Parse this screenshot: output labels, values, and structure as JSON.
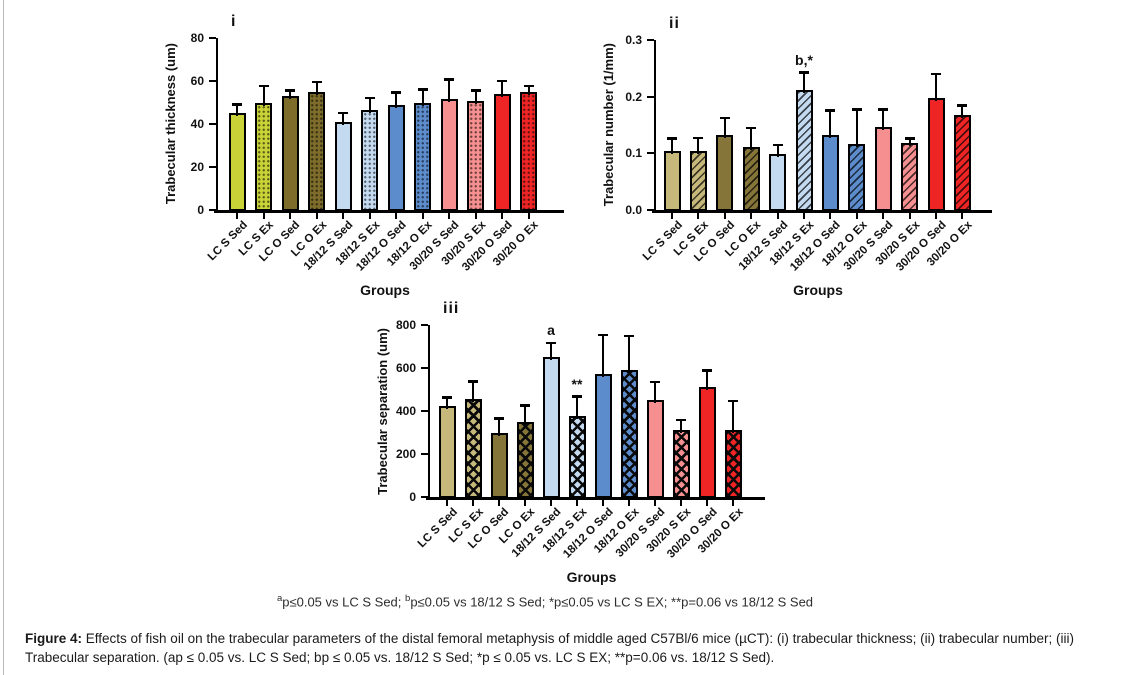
{
  "footnote": {
    "sup_a": "a",
    "seg1": "p≤0.05 vs LC  S Sed; ",
    "sup_b": "b",
    "seg2": "p≤0.05 vs 18/12 S Sed; *p≤0.05 vs LC S EX; **p=0.06 vs 18/12 S Sed"
  },
  "caption": {
    "label": "Figure 4:",
    "text": " Effects of fish oil on the trabecular parameters of the distal femoral metaphysis of middle aged C57Bl/6 mice (µCT): (i) trabecular thickness; (ii) trabecular number; (iii) Trabecular separation. (ap ≤ 0.05 vs. LC S Sed; bp ≤ 0.05 vs. 18/12 S Sed; *p ≤ 0.05 vs. LC S EX; **p=0.06 vs. 18/12 S Sed)."
  },
  "chart_data": [
    {
      "type": "bar",
      "index_label": "i",
      "ylabel": "Trabecular thickness (um)",
      "xlabel": "Groups",
      "ylim": [
        0,
        80
      ],
      "ytick_values": [
        0,
        20,
        40,
        60,
        80
      ],
      "ytick_labels": [
        "0",
        "20",
        "40",
        "60",
        "80"
      ],
      "grid": false,
      "legend": "none",
      "categories": [
        "LC S Sed",
        "LC S Ex",
        "LC O Sed",
        "LC O Ex",
        "18/12 S Sed",
        "18/12 S Ex",
        "18/12 O Sed",
        "18/12 O Ex",
        "30/20 S Sed",
        "30/20 S Ex",
        "30/20 O Sed",
        "30/20 O Ex"
      ],
      "values": [
        45,
        50,
        53,
        55,
        41,
        46.5,
        49,
        50,
        51.5,
        50.5,
        54,
        55
      ],
      "errors": [
        4,
        7.5,
        2.5,
        4.5,
        4,
        5.5,
        5.5,
        6,
        9,
        5,
        6,
        2.5
      ],
      "annotations": [
        "",
        "",
        "",
        "",
        "",
        "",
        "",
        "",
        "",
        "",
        "",
        ""
      ],
      "colors": [
        "#c9d337",
        "#c9d337",
        "#7d6c2a",
        "#7d6c2a",
        "#c3daf0",
        "#c3daf0",
        "#5d8ccd",
        "#5d8ccd",
        "#f69090",
        "#f69090",
        "#ee2425",
        "#ee2425"
      ],
      "patterns": [
        "solid",
        "dots",
        "solid",
        "dots",
        "solid",
        "dots",
        "solid",
        "dots",
        "solid",
        "dots",
        "solid",
        "dots"
      ]
    },
    {
      "type": "bar",
      "index_label": "ii",
      "ylabel": "Trabecular number (1/mm)",
      "xlabel": "Groups",
      "ylim": [
        0,
        0.3
      ],
      "ytick_values": [
        0,
        0.1,
        0.2,
        0.3
      ],
      "ytick_labels": [
        "0.0",
        "0.1",
        "0.2",
        "0.3"
      ],
      "grid": false,
      "legend": "none",
      "categories": [
        "LC S Sed",
        "LC S Ex",
        "LC O Sed",
        "LC O Ex",
        "18/12 S Sed",
        "18/12 S Ex",
        "18/12 O Sed",
        "18/12 O Ex",
        "30/20 S Sed",
        "30/20 S Ex",
        "30/20 O Sed",
        "30/20 O Ex"
      ],
      "values": [
        0.105,
        0.105,
        0.132,
        0.111,
        0.098,
        0.212,
        0.133,
        0.117,
        0.146,
        0.118,
        0.198,
        0.168
      ],
      "errors": [
        0.021,
        0.022,
        0.03,
        0.033,
        0.016,
        0.03,
        0.042,
        0.06,
        0.031,
        0.008,
        0.042,
        0.016
      ],
      "annotations": [
        "",
        "",
        "",
        "",
        "",
        "b,*",
        "",
        "",
        "",
        "",
        "",
        ""
      ],
      "colors": [
        "#c6b77b",
        "#c6b77b",
        "#867538",
        "#867538",
        "#c3daf0",
        "#c3daf0",
        "#5d8ccd",
        "#5d8ccd",
        "#f69090",
        "#f69090",
        "#ee2425",
        "#ee2425"
      ],
      "patterns": [
        "solid",
        "hatch",
        "solid",
        "hatch",
        "solid",
        "hatch",
        "solid",
        "hatch",
        "solid",
        "hatch",
        "solid",
        "hatch"
      ]
    },
    {
      "type": "bar",
      "index_label": "iii",
      "ylabel": "Trabecular separation (um)",
      "xlabel": "Groups",
      "ylim": [
        0,
        800
      ],
      "ytick_values": [
        0,
        200,
        400,
        600,
        800
      ],
      "ytick_labels": [
        "0",
        "200",
        "400",
        "600",
        "800"
      ],
      "grid": false,
      "legend": "none",
      "categories": [
        "LC S Sed",
        "LC S Ex",
        "LC O Sed",
        "LC O Ex",
        "18/12 S Sed",
        "18/12 S Ex",
        "18/12 O Sed",
        "18/12 O Ex",
        "30/20 S Sed",
        "30/20 S Ex",
        "30/20 O Sed",
        "30/20 O Ex"
      ],
      "values": [
        425,
        455,
        300,
        351,
        650,
        379,
        573,
        591,
        453,
        313,
        512,
        314
      ],
      "errors": [
        37,
        80,
        65,
        74,
        66,
        88,
        180,
        157,
        81,
        44,
        76,
        131
      ],
      "annotations": [
        "",
        "",
        "",
        "",
        "a",
        "**",
        "",
        "",
        "",
        "",
        "",
        ""
      ],
      "colors": [
        "#c6b77b",
        "#c6b77b",
        "#867538",
        "#867538",
        "#c3daf0",
        "#c3daf0",
        "#5d8ccd",
        "#5d8ccd",
        "#f69090",
        "#f69090",
        "#ee2425",
        "#ee2425"
      ],
      "patterns": [
        "solid",
        "check",
        "solid",
        "check",
        "solid",
        "check",
        "solid",
        "check",
        "solid",
        "check",
        "solid",
        "check"
      ]
    }
  ]
}
